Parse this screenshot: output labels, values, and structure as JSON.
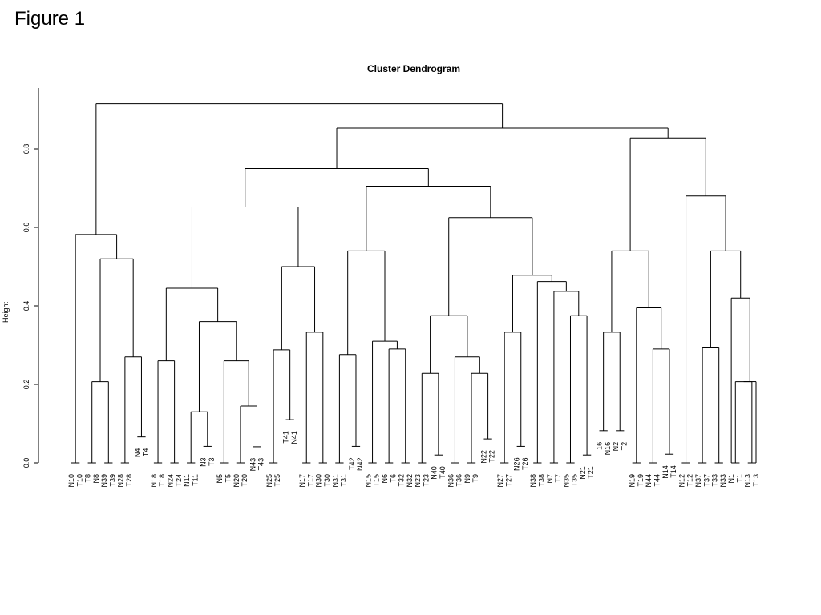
{
  "figure_label": "Figure 1",
  "chart_data": {
    "type": "dendrogram",
    "title": "Cluster Dendrogram",
    "ylabel": "Height",
    "xlabel": "",
    "ylim": [
      0,
      0.92
    ],
    "yticks": [
      "0.0",
      "0.2",
      "0.4",
      "0.6",
      "0.8"
    ],
    "grid": false,
    "leaves": [
      {
        "label": "N10",
        "h": 0
      },
      {
        "label": "T10",
        "h": 0
      },
      {
        "label": "T8",
        "h": 0
      },
      {
        "label": "N8",
        "h": 0
      },
      {
        "label": "N39",
        "h": 0
      },
      {
        "label": "T39",
        "h": 0
      },
      {
        "label": "N28",
        "h": 0
      },
      {
        "label": "T28",
        "h": 0
      },
      {
        "label": "N4",
        "h": 0.066
      },
      {
        "label": "T4",
        "h": 0.066
      },
      {
        "label": "N18",
        "h": 0
      },
      {
        "label": "T18",
        "h": 0
      },
      {
        "label": "N24",
        "h": 0
      },
      {
        "label": "T24",
        "h": 0
      },
      {
        "label": "N11",
        "h": 0
      },
      {
        "label": "T11",
        "h": 0
      },
      {
        "label": "N3",
        "h": 0.042
      },
      {
        "label": "T3",
        "h": 0.042
      },
      {
        "label": "N5",
        "h": 0
      },
      {
        "label": "T5",
        "h": 0
      },
      {
        "label": "N20",
        "h": 0
      },
      {
        "label": "T20",
        "h": 0
      },
      {
        "label": "N43",
        "h": 0.041
      },
      {
        "label": "T43",
        "h": 0.041
      },
      {
        "label": "N25",
        "h": 0
      },
      {
        "label": "T25",
        "h": 0
      },
      {
        "label": "T41",
        "h": 0.11
      },
      {
        "label": "N41",
        "h": 0.11
      },
      {
        "label": "N17",
        "h": 0
      },
      {
        "label": "T17",
        "h": 0
      },
      {
        "label": "N30",
        "h": 0
      },
      {
        "label": "T30",
        "h": 0
      },
      {
        "label": "N31",
        "h": 0
      },
      {
        "label": "T31",
        "h": 0
      },
      {
        "label": "T42",
        "h": 0.042
      },
      {
        "label": "N42",
        "h": 0.042
      },
      {
        "label": "N15",
        "h": 0
      },
      {
        "label": "T15",
        "h": 0
      },
      {
        "label": "N6",
        "h": 0
      },
      {
        "label": "T6",
        "h": 0
      },
      {
        "label": "T32",
        "h": 0
      },
      {
        "label": "N32",
        "h": 0
      },
      {
        "label": "N23",
        "h": 0
      },
      {
        "label": "T23",
        "h": 0
      },
      {
        "label": "N40",
        "h": 0.02
      },
      {
        "label": "T40",
        "h": 0.02
      },
      {
        "label": "N36",
        "h": 0
      },
      {
        "label": "T36",
        "h": 0
      },
      {
        "label": "N9",
        "h": 0
      },
      {
        "label": "T9",
        "h": 0
      },
      {
        "label": "N22",
        "h": 0.061
      },
      {
        "label": "T22",
        "h": 0.061
      },
      {
        "label": "N27",
        "h": 0
      },
      {
        "label": "T27",
        "h": 0
      },
      {
        "label": "N26",
        "h": 0.042
      },
      {
        "label": "T26",
        "h": 0.042
      },
      {
        "label": "N38",
        "h": 0
      },
      {
        "label": "T38",
        "h": 0
      },
      {
        "label": "N7",
        "h": 0
      },
      {
        "label": "T7",
        "h": 0
      },
      {
        "label": "N35",
        "h": 0
      },
      {
        "label": "T35",
        "h": 0
      },
      {
        "label": "N21",
        "h": 0.02
      },
      {
        "label": "T21",
        "h": 0.02
      },
      {
        "label": "T16",
        "h": 0.082
      },
      {
        "label": "N16",
        "h": 0.082
      },
      {
        "label": "N2",
        "h": 0.082
      },
      {
        "label": "T2",
        "h": 0.082
      },
      {
        "label": "N19",
        "h": 0
      },
      {
        "label": "T19",
        "h": 0
      },
      {
        "label": "N44",
        "h": 0
      },
      {
        "label": "T44",
        "h": 0
      },
      {
        "label": "N14",
        "h": 0.022
      },
      {
        "label": "T14",
        "h": 0.022
      },
      {
        "label": "N12",
        "h": 0
      },
      {
        "label": "T12",
        "h": 0
      },
      {
        "label": "N37",
        "h": 0
      },
      {
        "label": "T37",
        "h": 0
      },
      {
        "label": "T33",
        "h": 0
      },
      {
        "label": "N33",
        "h": 0
      },
      {
        "label": "N1",
        "h": 0
      },
      {
        "label": "T1",
        "h": 0
      },
      {
        "label": "N13",
        "h": 0
      },
      {
        "label": "T13",
        "h": 0
      }
    ],
    "merges": [
      {
        "a": 0,
        "b": 1,
        "h": 0
      },
      {
        "a": 2,
        "b": 3,
        "h": 0
      },
      {
        "a": 4,
        "b": 5,
        "h": 0
      },
      {
        "a": 6,
        "b": 7,
        "h": 0
      },
      {
        "a": 8,
        "b": 9,
        "h": 0.066
      },
      {
        "a": 10,
        "b": 11,
        "h": 0
      },
      {
        "a": 12,
        "b": 13,
        "h": 0
      },
      {
        "a": 14,
        "b": 15,
        "h": 0
      },
      {
        "a": 16,
        "b": 17,
        "h": 0.042
      },
      {
        "a": 18,
        "b": 19,
        "h": 0
      },
      {
        "a": 20,
        "b": 21,
        "h": 0
      },
      {
        "a": 22,
        "b": 23,
        "h": 0.041
      },
      {
        "a": 24,
        "b": 25,
        "h": 0
      },
      {
        "a": 26,
        "b": 27,
        "h": 0.11
      },
      {
        "a": 28,
        "b": 29,
        "h": 0
      },
      {
        "a": 30,
        "b": 31,
        "h": 0
      },
      {
        "a": 32,
        "b": 33,
        "h": 0
      },
      {
        "a": 34,
        "b": 35,
        "h": 0.042
      },
      {
        "a": 36,
        "b": 37,
        "h": 0
      },
      {
        "a": 38,
        "b": 39,
        "h": 0
      },
      {
        "a": 40,
        "b": 41,
        "h": 0
      },
      {
        "a": 42,
        "b": 43,
        "h": 0
      },
      {
        "a": 44,
        "b": 45,
        "h": 0.02
      },
      {
        "a": 46,
        "b": 47,
        "h": 0
      },
      {
        "a": 48,
        "b": 49,
        "h": 0
      },
      {
        "a": 50,
        "b": 51,
        "h": 0.061
      },
      {
        "a": 52,
        "b": 53,
        "h": 0
      },
      {
        "a": 54,
        "b": 55,
        "h": 0.042
      },
      {
        "a": 56,
        "b": 57,
        "h": 0
      },
      {
        "a": 58,
        "b": 59,
        "h": 0
      },
      {
        "a": 60,
        "b": 61,
        "h": 0
      },
      {
        "a": 62,
        "b": 63,
        "h": 0.02
      },
      {
        "a": 64,
        "b": 65,
        "h": 0.082
      },
      {
        "a": 66,
        "b": 67,
        "h": 0.082
      },
      {
        "a": 68,
        "b": 69,
        "h": 0
      },
      {
        "a": 70,
        "b": 71,
        "h": 0
      },
      {
        "a": 72,
        "b": 73,
        "h": 0.022
      },
      {
        "a": 74,
        "b": 75,
        "h": 0
      },
      {
        "a": 76,
        "b": 77,
        "h": 0
      },
      {
        "a": 78,
        "b": 79,
        "h": 0
      },
      {
        "a": 80,
        "b": 81,
        "h": 0
      },
      {
        "a": 82,
        "b": 83,
        "h": 0
      },
      {
        "a": 85,
        "b": 86,
        "h": 0.207
      },
      {
        "a": 87,
        "b": 88,
        "h": 0.27
      },
      {
        "a": 126,
        "b": 127,
        "h": 0.52
      },
      {
        "a": 84,
        "b": 128,
        "h": 0.582
      },
      {
        "a": 89,
        "b": 90,
        "h": 0.26
      },
      {
        "a": 91,
        "b": 92,
        "h": 0.13
      },
      {
        "a": 94,
        "b": 95,
        "h": 0.145
      },
      {
        "a": 93,
        "b": 132,
        "h": 0.26
      },
      {
        "a": 131,
        "b": 133,
        "h": 0.36
      },
      {
        "a": 130,
        "b": 134,
        "h": 0.445
      },
      {
        "a": 96,
        "b": 97,
        "h": 0.288
      },
      {
        "a": 98,
        "b": 99,
        "h": 0.333
      },
      {
        "a": 136,
        "b": 137,
        "h": 0.5
      },
      {
        "a": 135,
        "b": 138,
        "h": 0.652
      },
      {
        "a": 100,
        "b": 101,
        "h": 0.276
      },
      {
        "a": 103,
        "b": 104,
        "h": 0.29
      },
      {
        "a": 102,
        "b": 141,
        "h": 0.31
      },
      {
        "a": 140,
        "b": 142,
        "h": 0.54
      },
      {
        "a": 105,
        "b": 106,
        "h": 0.228
      },
      {
        "a": 108,
        "b": 109,
        "h": 0.228
      },
      {
        "a": 107,
        "b": 145,
        "h": 0.27
      },
      {
        "a": 144,
        "b": 146,
        "h": 0.375
      },
      {
        "a": 110,
        "b": 111,
        "h": 0.333
      },
      {
        "a": 114,
        "b": 115,
        "h": 0.375
      },
      {
        "a": 113,
        "b": 149,
        "h": 0.437
      },
      {
        "a": 112,
        "b": 150,
        "h": 0.462
      },
      {
        "a": 148,
        "b": 151,
        "h": 0.478
      },
      {
        "a": 147,
        "b": 152,
        "h": 0.625
      },
      {
        "a": 143,
        "b": 153,
        "h": 0.705
      },
      {
        "a": 139,
        "b": 154,
        "h": 0.75
      },
      {
        "a": 116,
        "b": 117,
        "h": 0.333
      },
      {
        "a": 119,
        "b": 120,
        "h": 0.29
      },
      {
        "a": 118,
        "b": 157,
        "h": 0.395
      },
      {
        "a": 156,
        "b": 158,
        "h": 0.54
      },
      {
        "a": 122,
        "b": 123,
        "h": 0.295
      },
      {
        "a": 124,
        "b": 125,
        "h": 0.207
      },
      {
        "a": 83,
        "b": 161,
        "h": 0.207
      },
      {
        "a": 80,
        "b": 162,
        "h": 0.42
      },
      {
        "a": 160,
        "b": 163,
        "h": 0.54
      },
      {
        "a": 121,
        "b": 164,
        "h": 0.68
      },
      {
        "a": 159,
        "b": 165,
        "h": 0.828
      },
      {
        "a": 155,
        "b": 166,
        "h": 0.853
      },
      {
        "a": 129,
        "b": 167,
        "h": 0.915
      }
    ]
  }
}
